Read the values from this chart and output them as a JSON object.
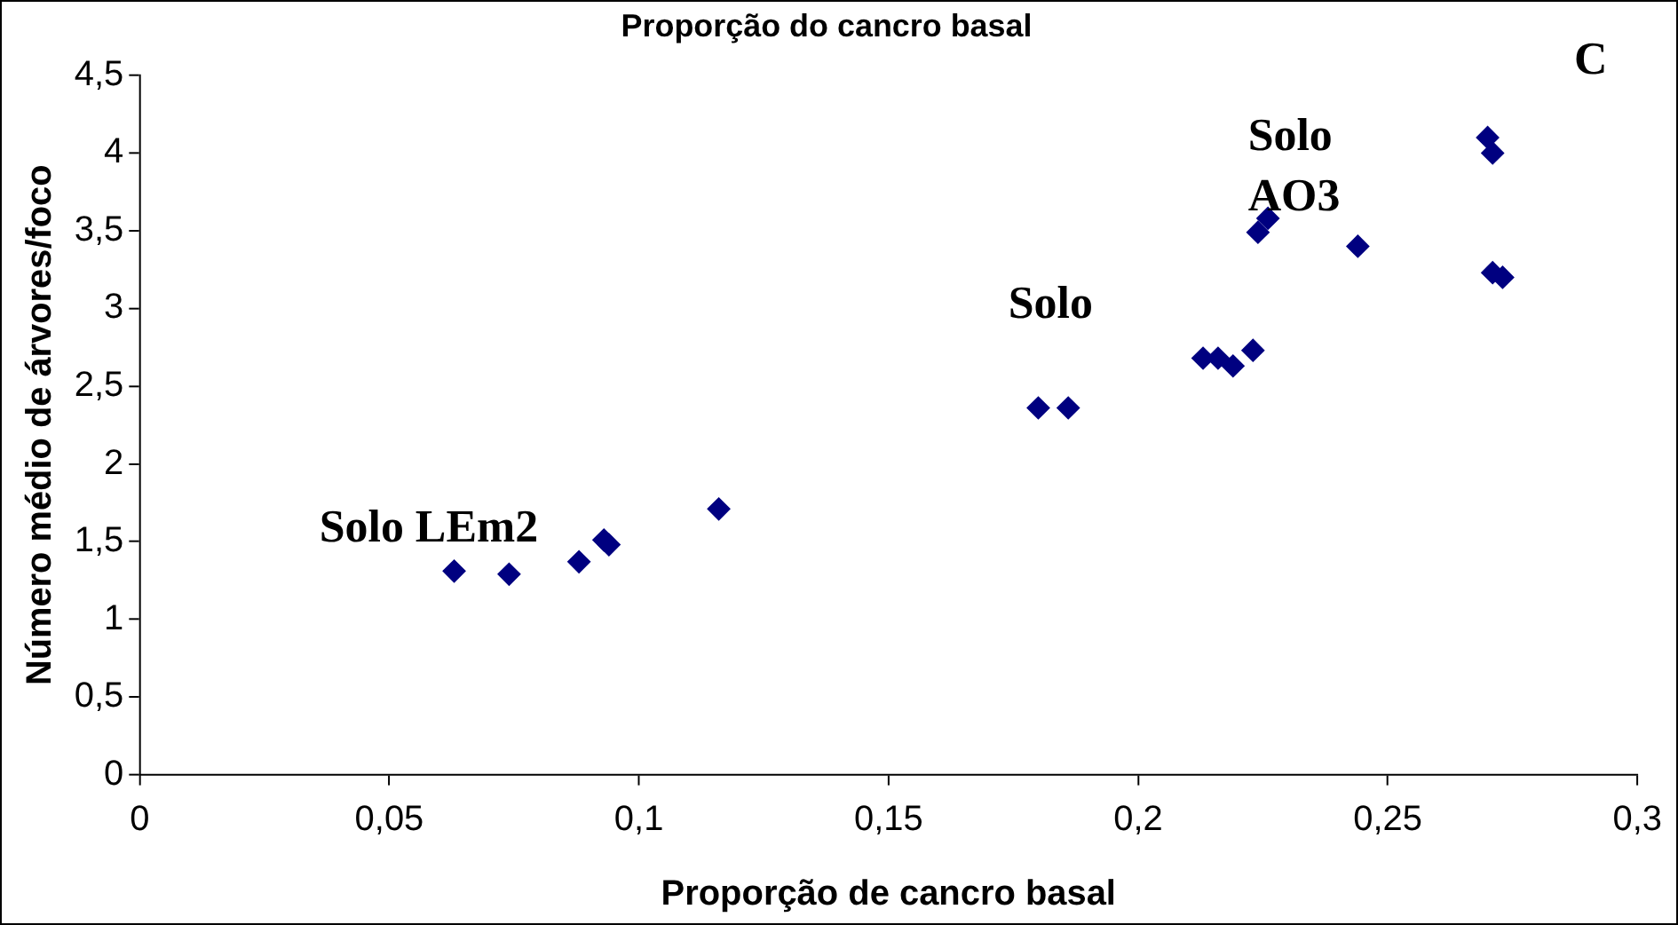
{
  "chart_data": {
    "type": "scatter",
    "title": "Proporção do cancro basal",
    "xlabel": "Proporção de cancro basal",
    "ylabel": "Número médio de árvores/foco",
    "x": [
      0.063,
      0.074,
      0.088,
      0.093,
      0.094,
      0.116,
      0.18,
      0.186,
      0.213,
      0.216,
      0.219,
      0.223,
      0.224,
      0.226,
      0.244,
      0.27,
      0.271,
      0.271,
      0.273
    ],
    "series": [
      {
        "color": "#000080",
        "values": [
          1.31,
          1.29,
          1.37,
          1.51,
          1.48,
          1.71,
          2.36,
          2.36,
          2.68,
          2.68,
          2.63,
          2.73,
          3.49,
          3.58,
          3.4,
          4.1,
          4.0,
          3.23,
          3.2
        ]
      }
    ],
    "xlim": [
      0,
      0.3
    ],
    "xticks": [
      {
        "value": 0,
        "label": "0"
      },
      {
        "value": 0.05,
        "label": "0,05"
      },
      {
        "value": 0.1,
        "label": "0,1"
      },
      {
        "value": 0.15,
        "label": "0,15"
      },
      {
        "value": 0.2,
        "label": "0,2"
      },
      {
        "value": 0.25,
        "label": "0,25"
      },
      {
        "value": 0.3,
        "label": "0,3"
      }
    ],
    "ylim": [
      0,
      4.5
    ],
    "yticks": [
      {
        "value": 0,
        "label": "0"
      },
      {
        "value": 0.5,
        "label": "0,5"
      },
      {
        "value": 1,
        "label": "1"
      },
      {
        "value": 1.5,
        "label": "1,5"
      },
      {
        "value": 2,
        "label": "2"
      },
      {
        "value": 2.5,
        "label": "2,5"
      },
      {
        "value": 3,
        "label": "3"
      },
      {
        "value": 3.5,
        "label": "3,5"
      },
      {
        "value": 4,
        "label": "4"
      },
      {
        "value": 4.5,
        "label": "4,5"
      }
    ],
    "annotations": [
      "Solo LEm2",
      "Solo",
      "Solo AO3",
      "C"
    ],
    "grid": false,
    "legend": false,
    "marker": "diamond"
  }
}
